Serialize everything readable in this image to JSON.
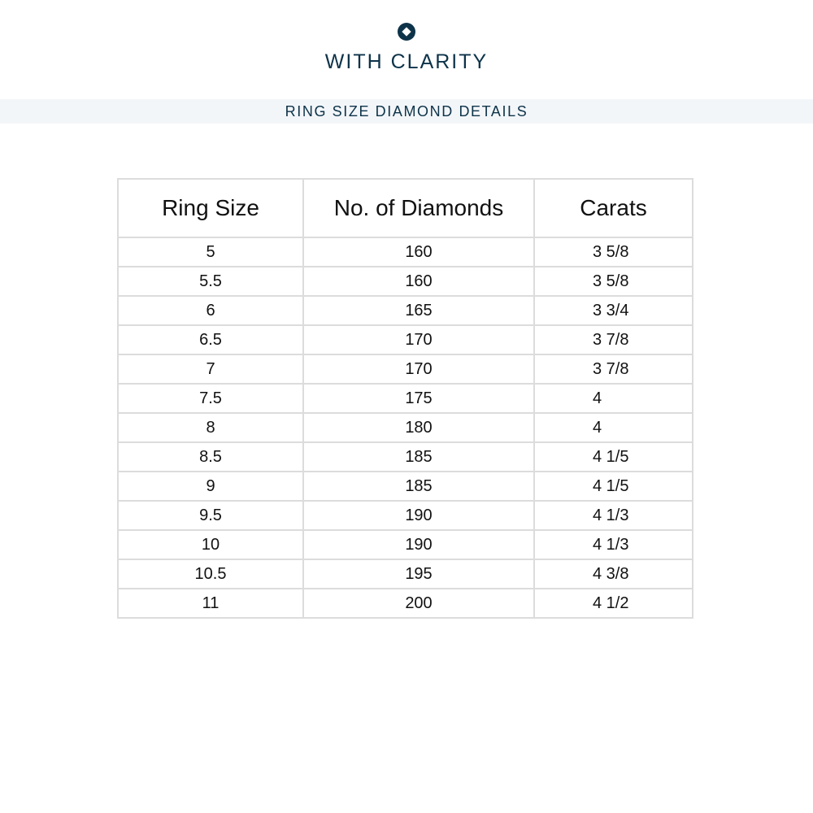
{
  "brand": {
    "name": "WITH CLARITY",
    "icon": "diamond-circle-logo",
    "color": "#0d3349"
  },
  "banner": {
    "title": "RING SIZE DIAMOND DETAILS"
  },
  "table": {
    "headers": [
      "Ring Size",
      "No. of Diamonds",
      "Carats"
    ],
    "rows": [
      [
        "5",
        "160",
        "3 5/8"
      ],
      [
        "5.5",
        "160",
        "3 5/8"
      ],
      [
        "6",
        "165",
        "3 3/4"
      ],
      [
        "6.5",
        "170",
        "3 7/8"
      ],
      [
        "7",
        "170",
        "3 7/8"
      ],
      [
        "7.5",
        "175",
        "4"
      ],
      [
        "8",
        "180",
        "4"
      ],
      [
        "8.5",
        "185",
        "4 1/5"
      ],
      [
        "9",
        "185",
        "4 1/5"
      ],
      [
        "9.5",
        "190",
        "4 1/3"
      ],
      [
        "10",
        "190",
        "4 1/3"
      ],
      [
        "10.5",
        "195",
        "4 3/8"
      ],
      [
        "11",
        "200",
        "4 1/2"
      ]
    ]
  }
}
